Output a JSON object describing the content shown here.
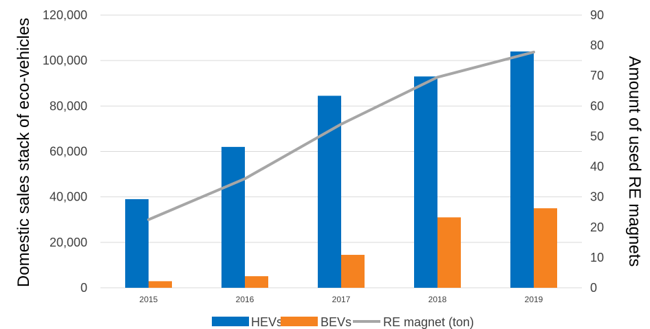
{
  "chart_data": {
    "type": "bar",
    "categories": [
      "2015",
      "2016",
      "2017",
      "2018",
      "2019"
    ],
    "series": [
      {
        "name": "HEVs",
        "type": "bar",
        "axis": "left",
        "color": "#0070C0",
        "values": [
          39000,
          62000,
          84500,
          93000,
          104000
        ]
      },
      {
        "name": "BEVs",
        "type": "bar",
        "axis": "left",
        "color": "#F58220",
        "values": [
          2900,
          5100,
          14500,
          31000,
          35000
        ]
      },
      {
        "name": "RE magnet (ton)",
        "type": "line",
        "axis": "right",
        "color": "#A6A6A6",
        "values": [
          22.5,
          36,
          54,
          69.5,
          77.8
        ]
      }
    ],
    "ylabel": "Domestic sales  stack of eco-vehicles",
    "y2label": "Amount of used RE magnets",
    "ylim": [
      0,
      120000
    ],
    "y2lim": [
      0,
      90
    ],
    "yticks": [
      "0",
      "20,000",
      "40,000",
      "60,000",
      "80,000",
      "100,000",
      "120,000"
    ],
    "y2ticks": [
      "0",
      "10",
      "20",
      "30",
      "40",
      "50",
      "60",
      "70",
      "80",
      "90"
    ],
    "grid": true,
    "legend_position": "bottom"
  }
}
